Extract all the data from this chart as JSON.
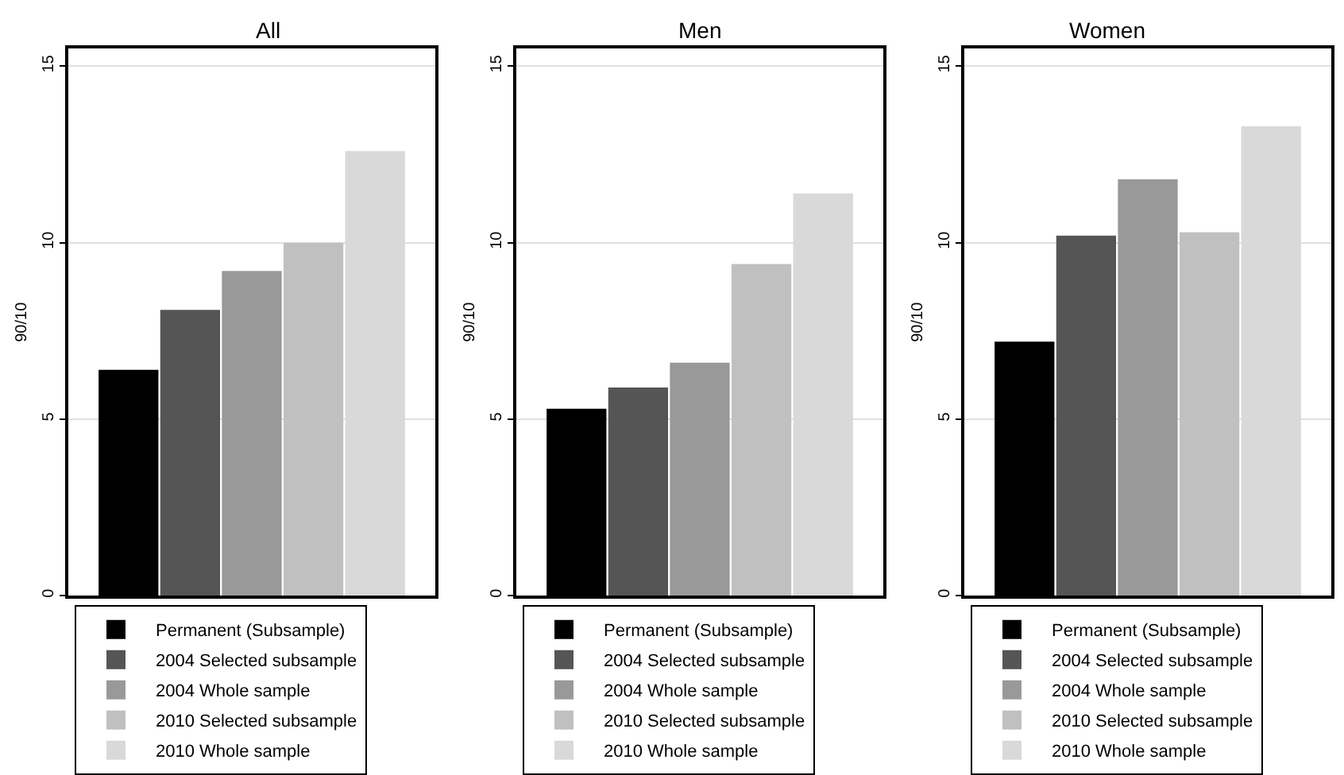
{
  "chart_data": [
    {
      "type": "bar",
      "title": "All",
      "ylabel": "90/10",
      "categories": [
        null
      ],
      "ylim": [
        0,
        15.5
      ],
      "yticks": [
        0,
        5,
        10,
        15
      ],
      "grid": "y",
      "legend": "bottom",
      "tick_labels": "y",
      "series": [
        {
          "name": "Permanent (Subsample)",
          "color": "#000000",
          "values": [
            6.4
          ]
        },
        {
          "name": "2004 Selected subsample",
          "color": "#555555",
          "values": [
            8.1
          ]
        },
        {
          "name": "2004 Whole sample",
          "color": "#999999",
          "values": [
            9.2
          ]
        },
        {
          "name": "2010 Selected subsample",
          "color": "#c0c0c0",
          "values": [
            10.0
          ]
        },
        {
          "name": "2010 Whole sample",
          "color": "#d9d9d9",
          "values": [
            12.6
          ]
        }
      ]
    },
    {
      "type": "bar",
      "title": "Men",
      "ylabel": "90/10",
      "categories": [
        null
      ],
      "ylim": [
        0,
        15.5
      ],
      "yticks": [
        0,
        5,
        10,
        15
      ],
      "grid": "y",
      "legend": "bottom",
      "tick_labels": "y",
      "series": [
        {
          "name": "Permanent (Subsample)",
          "color": "#000000",
          "values": [
            5.3
          ]
        },
        {
          "name": "2004 Selected subsample",
          "color": "#555555",
          "values": [
            5.9
          ]
        },
        {
          "name": "2004 Whole sample",
          "color": "#999999",
          "values": [
            6.6
          ]
        },
        {
          "name": "2010 Selected subsample",
          "color": "#c0c0c0",
          "values": [
            9.4
          ]
        },
        {
          "name": "2010 Whole sample",
          "color": "#d9d9d9",
          "values": [
            11.4
          ]
        }
      ]
    },
    {
      "type": "bar",
      "title": "Women",
      "ylabel": "90/10",
      "categories": [
        null
      ],
      "ylim": [
        0,
        15.5
      ],
      "yticks": [
        0,
        5,
        10,
        15
      ],
      "grid": "y",
      "legend": "bottom",
      "tick_labels": "y",
      "series": [
        {
          "name": "Permanent (Subsample)",
          "color": "#000000",
          "values": [
            7.2
          ]
        },
        {
          "name": "2004 Selected subsample",
          "color": "#555555",
          "values": [
            10.2
          ]
        },
        {
          "name": "2004 Whole sample",
          "color": "#999999",
          "values": [
            11.8
          ]
        },
        {
          "name": "2010 Selected subsample",
          "color": "#c0c0c0",
          "values": [
            10.3
          ]
        },
        {
          "name": "2010 Whole sample",
          "color": "#d9d9d9",
          "values": [
            13.3
          ]
        }
      ]
    }
  ]
}
